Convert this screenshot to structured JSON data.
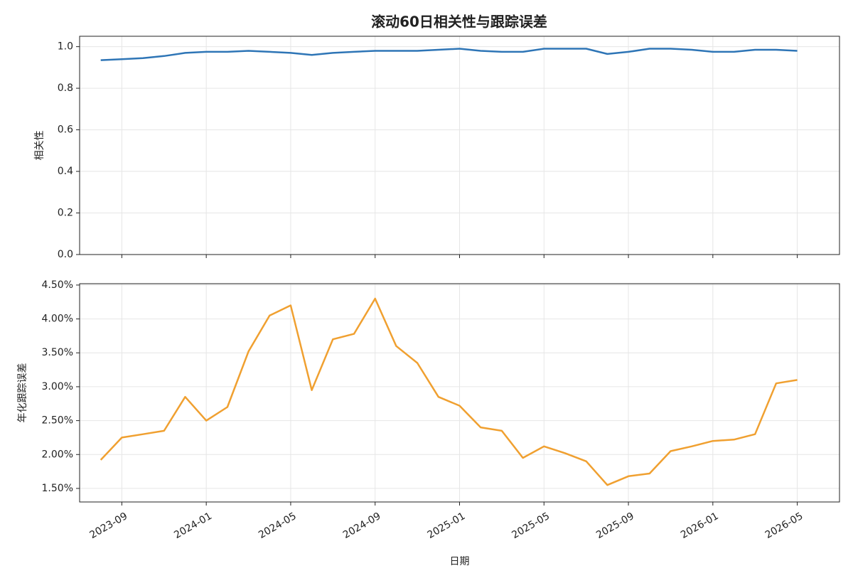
{
  "chart_data": [
    {
      "type": "line",
      "title": "滚动60日相关性与跟踪误差",
      "ylabel": "相关性",
      "x": [
        "2023-08",
        "2023-09",
        "2023-10",
        "2023-11",
        "2023-12",
        "2024-01",
        "2024-02",
        "2024-03",
        "2024-04",
        "2024-05",
        "2024-06",
        "2024-07",
        "2024-08",
        "2024-09",
        "2024-10",
        "2024-11",
        "2024-12",
        "2025-01",
        "2025-02",
        "2025-03",
        "2025-04",
        "2025-05",
        "2025-06",
        "2025-07",
        "2025-08",
        "2025-09",
        "2025-10",
        "2025-11",
        "2025-12",
        "2026-01",
        "2026-02",
        "2026-03",
        "2026-04",
        "2026-05"
      ],
      "series": [
        {
          "color": "#2e75b6",
          "values": [
            0.935,
            0.94,
            0.945,
            0.955,
            0.97,
            0.975,
            0.975,
            0.98,
            0.975,
            0.97,
            0.96,
            0.97,
            0.975,
            0.98,
            0.98,
            0.98,
            0.985,
            0.99,
            0.98,
            0.975,
            0.975,
            0.99,
            0.99,
            0.99,
            0.965,
            0.975,
            0.99,
            0.99,
            0.985,
            0.975,
            0.975,
            0.985,
            0.985,
            0.98
          ]
        }
      ],
      "xlim": [
        "2023-07",
        "2026-07"
      ],
      "xticks": [
        "2023-09",
        "2024-01",
        "2024-05",
        "2024-09",
        "2025-01",
        "2025-05",
        "2025-09",
        "2026-01",
        "2026-05"
      ],
      "ylim": [
        0,
        1.05
      ],
      "yticks": [
        {
          "value": 0,
          "label": "0.0"
        },
        {
          "value": 0.2,
          "label": "0.2"
        },
        {
          "value": 0.4,
          "label": "0.4"
        },
        {
          "value": 0.6,
          "label": "0.6"
        },
        {
          "value": 0.8,
          "label": "0.8"
        },
        {
          "value": 1,
          "label": "1.0"
        }
      ],
      "grid": true
    },
    {
      "type": "line",
      "ylabel": "年化跟踪误差",
      "xlabel": "日期",
      "x": [
        "2023-08",
        "2023-09",
        "2023-10",
        "2023-11",
        "2023-12",
        "2024-01",
        "2024-02",
        "2024-03",
        "2024-04",
        "2024-05",
        "2024-06",
        "2024-07",
        "2024-08",
        "2024-09",
        "2024-10",
        "2024-11",
        "2024-12",
        "2025-01",
        "2025-02",
        "2025-03",
        "2025-04",
        "2025-05",
        "2025-06",
        "2025-07",
        "2025-08",
        "2025-09",
        "2025-10",
        "2025-11",
        "2025-12",
        "2026-01",
        "2026-02",
        "2026-03",
        "2026-04",
        "2026-05"
      ],
      "series": [
        {
          "color": "#f0a030",
          "values": [
            1.92,
            2.25,
            2.3,
            2.35,
            2.85,
            2.5,
            2.7,
            3.52,
            4.05,
            4.2,
            2.95,
            3.7,
            3.78,
            4.3,
            3.6,
            3.35,
            2.85,
            2.72,
            2.4,
            2.35,
            1.95,
            2.12,
            2.02,
            1.9,
            1.55,
            1.68,
            1.72,
            2.05,
            2.12,
            2.2,
            2.22,
            2.3,
            3.05,
            3.1
          ]
        }
      ],
      "xlim": [
        "2023-07",
        "2026-07"
      ],
      "xticks": [
        "2023-09",
        "2024-01",
        "2024-05",
        "2024-09",
        "2025-01",
        "2025-05",
        "2025-09",
        "2026-01",
        "2026-05"
      ],
      "ylim": [
        1.3,
        4.52
      ],
      "yticks": [
        {
          "value": 1.5,
          "label": "1.50%"
        },
        {
          "value": 2,
          "label": "2.00%"
        },
        {
          "value": 2.5,
          "label": "2.50%"
        },
        {
          "value": 3,
          "label": "3.00%"
        },
        {
          "value": 3.5,
          "label": "3.50%"
        },
        {
          "value": 4,
          "label": "4.00%"
        },
        {
          "value": 4.5,
          "label": "4.50%"
        }
      ],
      "grid": true
    }
  ]
}
